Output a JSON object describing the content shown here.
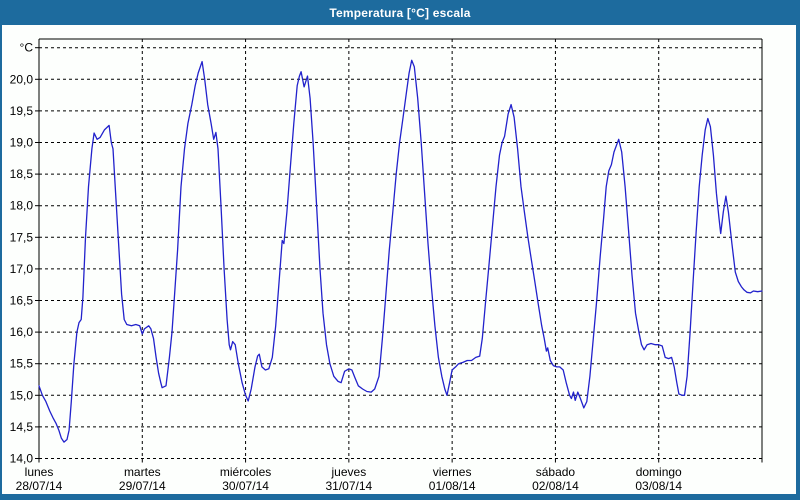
{
  "window": {
    "title": "Temperatura [°C] escala"
  },
  "colors": {
    "chrome_blue": "#1d6b9e",
    "plot_background": "#fdfffd",
    "grid_black": "#000000",
    "line_blue": "#2222cc",
    "title_text": "#ffffff"
  },
  "chart_data": {
    "type": "line",
    "title": "Temperatura [°C] escala",
    "ylabel": "°C",
    "unit_label": "°C",
    "grid": "dashed",
    "legend_position": "none",
    "y_axis": {
      "min": 14.0,
      "max": 20.5,
      "tick_step": 0.5,
      "tick_labels": [
        "14,0",
        "14,5",
        "15,0",
        "15,5",
        "16,0",
        "16,5",
        "17,0",
        "17,5",
        "18,0",
        "18,5",
        "19,0",
        "19,5",
        "20,0"
      ],
      "decimal_style": "comma"
    },
    "x_axis": {
      "unit": "hours",
      "range_hours": [
        0,
        168
      ],
      "day_tick_step_hours": 24,
      "days": [
        {
          "name": "lunes",
          "date": "28/07/14"
        },
        {
          "name": "martes",
          "date": "29/07/14"
        },
        {
          "name": "miércoles",
          "date": "30/07/14"
        },
        {
          "name": "jueves",
          "date": "31/07/14"
        },
        {
          "name": "viernes",
          "date": "01/08/14"
        },
        {
          "name": "sábado",
          "date": "02/08/14"
        },
        {
          "name": "domingo",
          "date": "03/08/14"
        }
      ]
    },
    "series": [
      {
        "name": "Temperatura",
        "color": "#2222cc",
        "points": [
          [
            0,
            15.15
          ],
          [
            0.8,
            15.0
          ],
          [
            1.6,
            14.9
          ],
          [
            2.5,
            14.75
          ],
          [
            3.2,
            14.65
          ],
          [
            4,
            14.55
          ],
          [
            4.6,
            14.45
          ],
          [
            5.2,
            14.32
          ],
          [
            5.8,
            14.26
          ],
          [
            6.5,
            14.3
          ],
          [
            7,
            14.45
          ],
          [
            7.5,
            14.9
          ],
          [
            8.1,
            15.5
          ],
          [
            8.8,
            16.0
          ],
          [
            9.3,
            16.15
          ],
          [
            9.8,
            16.2
          ],
          [
            10.2,
            16.55
          ],
          [
            10.8,
            17.5
          ],
          [
            11.5,
            18.3
          ],
          [
            12.3,
            18.9
          ],
          [
            12.8,
            19.15
          ],
          [
            13.5,
            19.05
          ],
          [
            14.2,
            19.08
          ],
          [
            15.2,
            19.2
          ],
          [
            16.3,
            19.27
          ],
          [
            16.8,
            19.0
          ],
          [
            17.2,
            18.9
          ],
          [
            17.8,
            18.2
          ],
          [
            18.5,
            17.4
          ],
          [
            19.2,
            16.6
          ],
          [
            19.8,
            16.2
          ],
          [
            20.4,
            16.12
          ],
          [
            21.5,
            16.1
          ],
          [
            22.5,
            16.12
          ],
          [
            23.4,
            16.1
          ],
          [
            24,
            15.97
          ],
          [
            24.5,
            16.05
          ],
          [
            25.5,
            16.1
          ],
          [
            26,
            16.05
          ],
          [
            26.6,
            15.9
          ],
          [
            27.2,
            15.6
          ],
          [
            27.8,
            15.35
          ],
          [
            28.3,
            15.2
          ],
          [
            28.6,
            15.12
          ],
          [
            29.5,
            15.15
          ],
          [
            30.3,
            15.6
          ],
          [
            30.9,
            16.0
          ],
          [
            31.5,
            16.6
          ],
          [
            32.2,
            17.3
          ],
          [
            33,
            18.3
          ],
          [
            33.8,
            18.9
          ],
          [
            34.6,
            19.3
          ],
          [
            35.5,
            19.6
          ],
          [
            36.3,
            19.9
          ],
          [
            37,
            20.1
          ],
          [
            37.9,
            20.28
          ],
          [
            38.5,
            20.0
          ],
          [
            39.2,
            19.6
          ],
          [
            40,
            19.3
          ],
          [
            40.6,
            19.05
          ],
          [
            41.1,
            19.16
          ],
          [
            41.6,
            18.9
          ],
          [
            42.3,
            18.0
          ],
          [
            43,
            17.0
          ],
          [
            43.7,
            16.2
          ],
          [
            44.2,
            15.8
          ],
          [
            44.5,
            15.72
          ],
          [
            45,
            15.85
          ],
          [
            45.6,
            15.8
          ],
          [
            46.3,
            15.5
          ],
          [
            47.2,
            15.2
          ],
          [
            48,
            15.0
          ],
          [
            48.6,
            14.91
          ],
          [
            49.3,
            15.1
          ],
          [
            50.2,
            15.45
          ],
          [
            50.8,
            15.62
          ],
          [
            51.2,
            15.65
          ],
          [
            51.8,
            15.45
          ],
          [
            52.6,
            15.4
          ],
          [
            53.4,
            15.42
          ],
          [
            54.2,
            15.6
          ],
          [
            55,
            16.1
          ],
          [
            55.8,
            16.8
          ],
          [
            56.5,
            17.45
          ],
          [
            56.9,
            17.4
          ],
          [
            57.6,
            17.9
          ],
          [
            58.4,
            18.6
          ],
          [
            59.2,
            19.3
          ],
          [
            60,
            19.9
          ],
          [
            60.5,
            20.05
          ],
          [
            60.9,
            20.12
          ],
          [
            61.6,
            19.88
          ],
          [
            62.4,
            20.05
          ],
          [
            63,
            19.7
          ],
          [
            63.7,
            19.0
          ],
          [
            64.5,
            18.0
          ],
          [
            65.3,
            17.0
          ],
          [
            66,
            16.3
          ],
          [
            66.8,
            15.8
          ],
          [
            67.6,
            15.5
          ],
          [
            68.5,
            15.3
          ],
          [
            69.5,
            15.22
          ],
          [
            70.2,
            15.2
          ],
          [
            71,
            15.38
          ],
          [
            72,
            15.42
          ],
          [
            72.7,
            15.4
          ],
          [
            73.4,
            15.28
          ],
          [
            74.2,
            15.15
          ],
          [
            75.2,
            15.1
          ],
          [
            76.2,
            15.06
          ],
          [
            77.2,
            15.05
          ],
          [
            78,
            15.1
          ],
          [
            79,
            15.3
          ],
          [
            79.8,
            15.9
          ],
          [
            80.6,
            16.6
          ],
          [
            81.4,
            17.3
          ],
          [
            82.2,
            17.9
          ],
          [
            83,
            18.5
          ],
          [
            83.8,
            19.0
          ],
          [
            84.6,
            19.4
          ],
          [
            85.4,
            19.8
          ],
          [
            86,
            20.1
          ],
          [
            86.6,
            20.3
          ],
          [
            87.2,
            20.2
          ],
          [
            88,
            19.7
          ],
          [
            88.8,
            19.0
          ],
          [
            89.6,
            18.2
          ],
          [
            90.4,
            17.4
          ],
          [
            91.2,
            16.7
          ],
          [
            92,
            16.1
          ],
          [
            92.8,
            15.6
          ],
          [
            93.6,
            15.3
          ],
          [
            94.3,
            15.1
          ],
          [
            94.8,
            15.0
          ],
          [
            95.4,
            15.2
          ],
          [
            96,
            15.4
          ],
          [
            96.8,
            15.45
          ],
          [
            97.5,
            15.5
          ],
          [
            98.5,
            15.52
          ],
          [
            99.5,
            15.55
          ],
          [
            100.5,
            15.55
          ],
          [
            101.5,
            15.6
          ],
          [
            102.4,
            15.62
          ],
          [
            103,
            15.9
          ],
          [
            103.8,
            16.5
          ],
          [
            104.6,
            17.1
          ],
          [
            105.4,
            17.7
          ],
          [
            106.2,
            18.3
          ],
          [
            107,
            18.8
          ],
          [
            107.6,
            19.0
          ],
          [
            108.2,
            19.1
          ],
          [
            109,
            19.45
          ],
          [
            109.7,
            19.6
          ],
          [
            110.4,
            19.4
          ],
          [
            111.2,
            18.9
          ],
          [
            112,
            18.3
          ],
          [
            112.8,
            17.9
          ],
          [
            113.6,
            17.5
          ],
          [
            114.4,
            17.15
          ],
          [
            115.2,
            16.8
          ],
          [
            116,
            16.45
          ],
          [
            116.8,
            16.1
          ],
          [
            117.4,
            15.9
          ],
          [
            117.9,
            15.7
          ],
          [
            118.2,
            15.75
          ],
          [
            118.8,
            15.55
          ],
          [
            119.5,
            15.47
          ],
          [
            120.3,
            15.45
          ],
          [
            121,
            15.45
          ],
          [
            121.8,
            15.4
          ],
          [
            122.5,
            15.2
          ],
          [
            123.3,
            15.0
          ],
          [
            123.7,
            14.95
          ],
          [
            124.2,
            15.05
          ],
          [
            124.6,
            14.92
          ],
          [
            125.2,
            15.05
          ],
          [
            125.8,
            14.95
          ],
          [
            126.6,
            14.8
          ],
          [
            127.3,
            14.9
          ],
          [
            128,
            15.3
          ],
          [
            128.8,
            15.9
          ],
          [
            129.6,
            16.5
          ],
          [
            130.4,
            17.2
          ],
          [
            131.2,
            17.8
          ],
          [
            131.8,
            18.3
          ],
          [
            132.4,
            18.55
          ],
          [
            133,
            18.65
          ],
          [
            133.6,
            18.85
          ],
          [
            134.7,
            19.05
          ],
          [
            135.4,
            18.85
          ],
          [
            136.2,
            18.3
          ],
          [
            137,
            17.6
          ],
          [
            137.8,
            16.9
          ],
          [
            138.6,
            16.3
          ],
          [
            139.4,
            16.0
          ],
          [
            140,
            15.8
          ],
          [
            140.6,
            15.72
          ],
          [
            141.3,
            15.8
          ],
          [
            142.2,
            15.82
          ],
          [
            143.2,
            15.8
          ],
          [
            144,
            15.8
          ],
          [
            144.8,
            15.78
          ],
          [
            145.5,
            15.6
          ],
          [
            146.3,
            15.58
          ],
          [
            147,
            15.6
          ],
          [
            147.6,
            15.45
          ],
          [
            148.2,
            15.2
          ],
          [
            148.7,
            15.02
          ],
          [
            149.5,
            15.0
          ],
          [
            150,
            15.0
          ],
          [
            150.6,
            15.3
          ],
          [
            151.3,
            16.0
          ],
          [
            152,
            16.8
          ],
          [
            152.7,
            17.6
          ],
          [
            153.4,
            18.3
          ],
          [
            154.1,
            18.8
          ],
          [
            154.8,
            19.2
          ],
          [
            155.4,
            19.38
          ],
          [
            156,
            19.25
          ],
          [
            156.7,
            18.8
          ],
          [
            157.4,
            18.2
          ],
          [
            158,
            17.8
          ],
          [
            158.4,
            17.56
          ],
          [
            159,
            17.9
          ],
          [
            159.6,
            18.15
          ],
          [
            160.2,
            17.9
          ],
          [
            161,
            17.4
          ],
          [
            161.8,
            16.95
          ],
          [
            162.5,
            16.8
          ],
          [
            163.2,
            16.72
          ],
          [
            163.8,
            16.67
          ],
          [
            164.5,
            16.63
          ],
          [
            165.3,
            16.62
          ],
          [
            166,
            16.65
          ],
          [
            167,
            16.64
          ],
          [
            168,
            16.65
          ]
        ]
      }
    ]
  }
}
